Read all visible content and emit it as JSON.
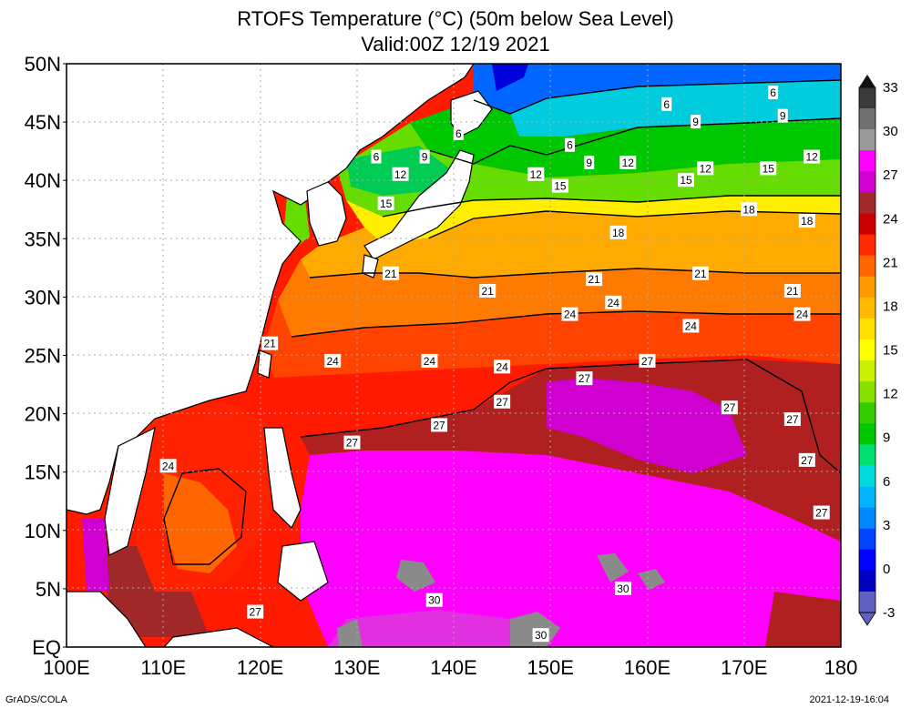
{
  "title_line1": "RTOFS Temperature (°C) (50m below Sea Level)",
  "title_line2": "Valid:00Z 12/19 2021",
  "footer_left": "GrADS/COLA",
  "footer_right": "2021-12-19-16:04",
  "lat_labels": [
    "50N",
    "45N",
    "40N",
    "35N",
    "30N",
    "25N",
    "20N",
    "15N",
    "10N",
    "5N",
    "EQ"
  ],
  "lon_labels": [
    "100E",
    "110E",
    "120E",
    "130E",
    "140E",
    "150E",
    "160E",
    "170E",
    "180"
  ],
  "colorbar": {
    "labels": [
      "33",
      "30",
      "27",
      "24",
      "21",
      "18",
      "15",
      "12",
      "9",
      "6",
      "3",
      "0",
      "-3"
    ],
    "colors": [
      "#3a3a3a",
      "#707070",
      "#9a9a9a",
      "#ff00ff",
      "#d000d0",
      "#a32a2a",
      "#cc0000",
      "#ff2a00",
      "#ff6600",
      "#ff9900",
      "#ffbb00",
      "#ffe000",
      "#ffff00",
      "#c8f000",
      "#88e000",
      "#33cc00",
      "#00c800",
      "#00e070",
      "#00dcdc",
      "#00b4ff",
      "#0088ff",
      "#0044ff",
      "#0000ff",
      "#0000c0",
      "#6060c0"
    ]
  },
  "contour_labels": [
    {
      "text": "6",
      "lon": 140.5,
      "lat": 44
    },
    {
      "text": "6",
      "lon": 162,
      "lat": 46.5
    },
    {
      "text": "6",
      "lon": 173,
      "lat": 47.5
    },
    {
      "text": "6",
      "lon": 132,
      "lat": 42
    },
    {
      "text": "6",
      "lon": 152,
      "lat": 43
    },
    {
      "text": "9",
      "lon": 165,
      "lat": 45
    },
    {
      "text": "9",
      "lon": 174,
      "lat": 45.5
    },
    {
      "text": "9",
      "lon": 137,
      "lat": 42
    },
    {
      "text": "9",
      "lon": 154,
      "lat": 41.5
    },
    {
      "text": "12",
      "lon": 134.5,
      "lat": 40.5
    },
    {
      "text": "12",
      "lon": 158,
      "lat": 41.5
    },
    {
      "text": "12",
      "lon": 166,
      "lat": 41
    },
    {
      "text": "12",
      "lon": 177,
      "lat": 42
    },
    {
      "text": "12",
      "lon": 148.5,
      "lat": 40.5
    },
    {
      "text": "15",
      "lon": 133,
      "lat": 38
    },
    {
      "text": "15",
      "lon": 151,
      "lat": 39.5
    },
    {
      "text": "15",
      "lon": 164,
      "lat": 40
    },
    {
      "text": "15",
      "lon": 172.5,
      "lat": 41
    },
    {
      "text": "18",
      "lon": 157,
      "lat": 35.5
    },
    {
      "text": "18",
      "lon": 170.5,
      "lat": 37.5
    },
    {
      "text": "18",
      "lon": 176.5,
      "lat": 36.5
    },
    {
      "text": "21",
      "lon": 133.5,
      "lat": 32
    },
    {
      "text": "21",
      "lon": 143.5,
      "lat": 30.5
    },
    {
      "text": "21",
      "lon": 154.5,
      "lat": 31.5
    },
    {
      "text": "21",
      "lon": 165.5,
      "lat": 32
    },
    {
      "text": "21",
      "lon": 175,
      "lat": 30.5
    },
    {
      "text": "21",
      "lon": 121,
      "lat": 26
    },
    {
      "text": "24",
      "lon": 156.5,
      "lat": 29.5
    },
    {
      "text": "24",
      "lon": 152,
      "lat": 28.5
    },
    {
      "text": "24",
      "lon": 164.5,
      "lat": 27.5
    },
    {
      "text": "24",
      "lon": 176,
      "lat": 28.5
    },
    {
      "text": "24",
      "lon": 127.5,
      "lat": 24.5
    },
    {
      "text": "24",
      "lon": 137.5,
      "lat": 24.5
    },
    {
      "text": "24",
      "lon": 145,
      "lat": 24
    },
    {
      "text": "24",
      "lon": 110.5,
      "lat": 15.5
    },
    {
      "text": "27",
      "lon": 160,
      "lat": 24.5
    },
    {
      "text": "27",
      "lon": 153.5,
      "lat": 23
    },
    {
      "text": "27",
      "lon": 145,
      "lat": 21
    },
    {
      "text": "27",
      "lon": 168.5,
      "lat": 20.5
    },
    {
      "text": "27",
      "lon": 175,
      "lat": 19.5
    },
    {
      "text": "27",
      "lon": 176.5,
      "lat": 16
    },
    {
      "text": "27",
      "lon": 178,
      "lat": 11.5
    },
    {
      "text": "27",
      "lon": 138.5,
      "lat": 19
    },
    {
      "text": "27",
      "lon": 129.5,
      "lat": 17.5
    },
    {
      "text": "27",
      "lon": 119.5,
      "lat": 3
    },
    {
      "text": "30",
      "lon": 157.5,
      "lat": 5
    },
    {
      "text": "30",
      "lon": 138,
      "lat": 4
    },
    {
      "text": "30",
      "lon": 149,
      "lat": 1
    }
  ]
}
